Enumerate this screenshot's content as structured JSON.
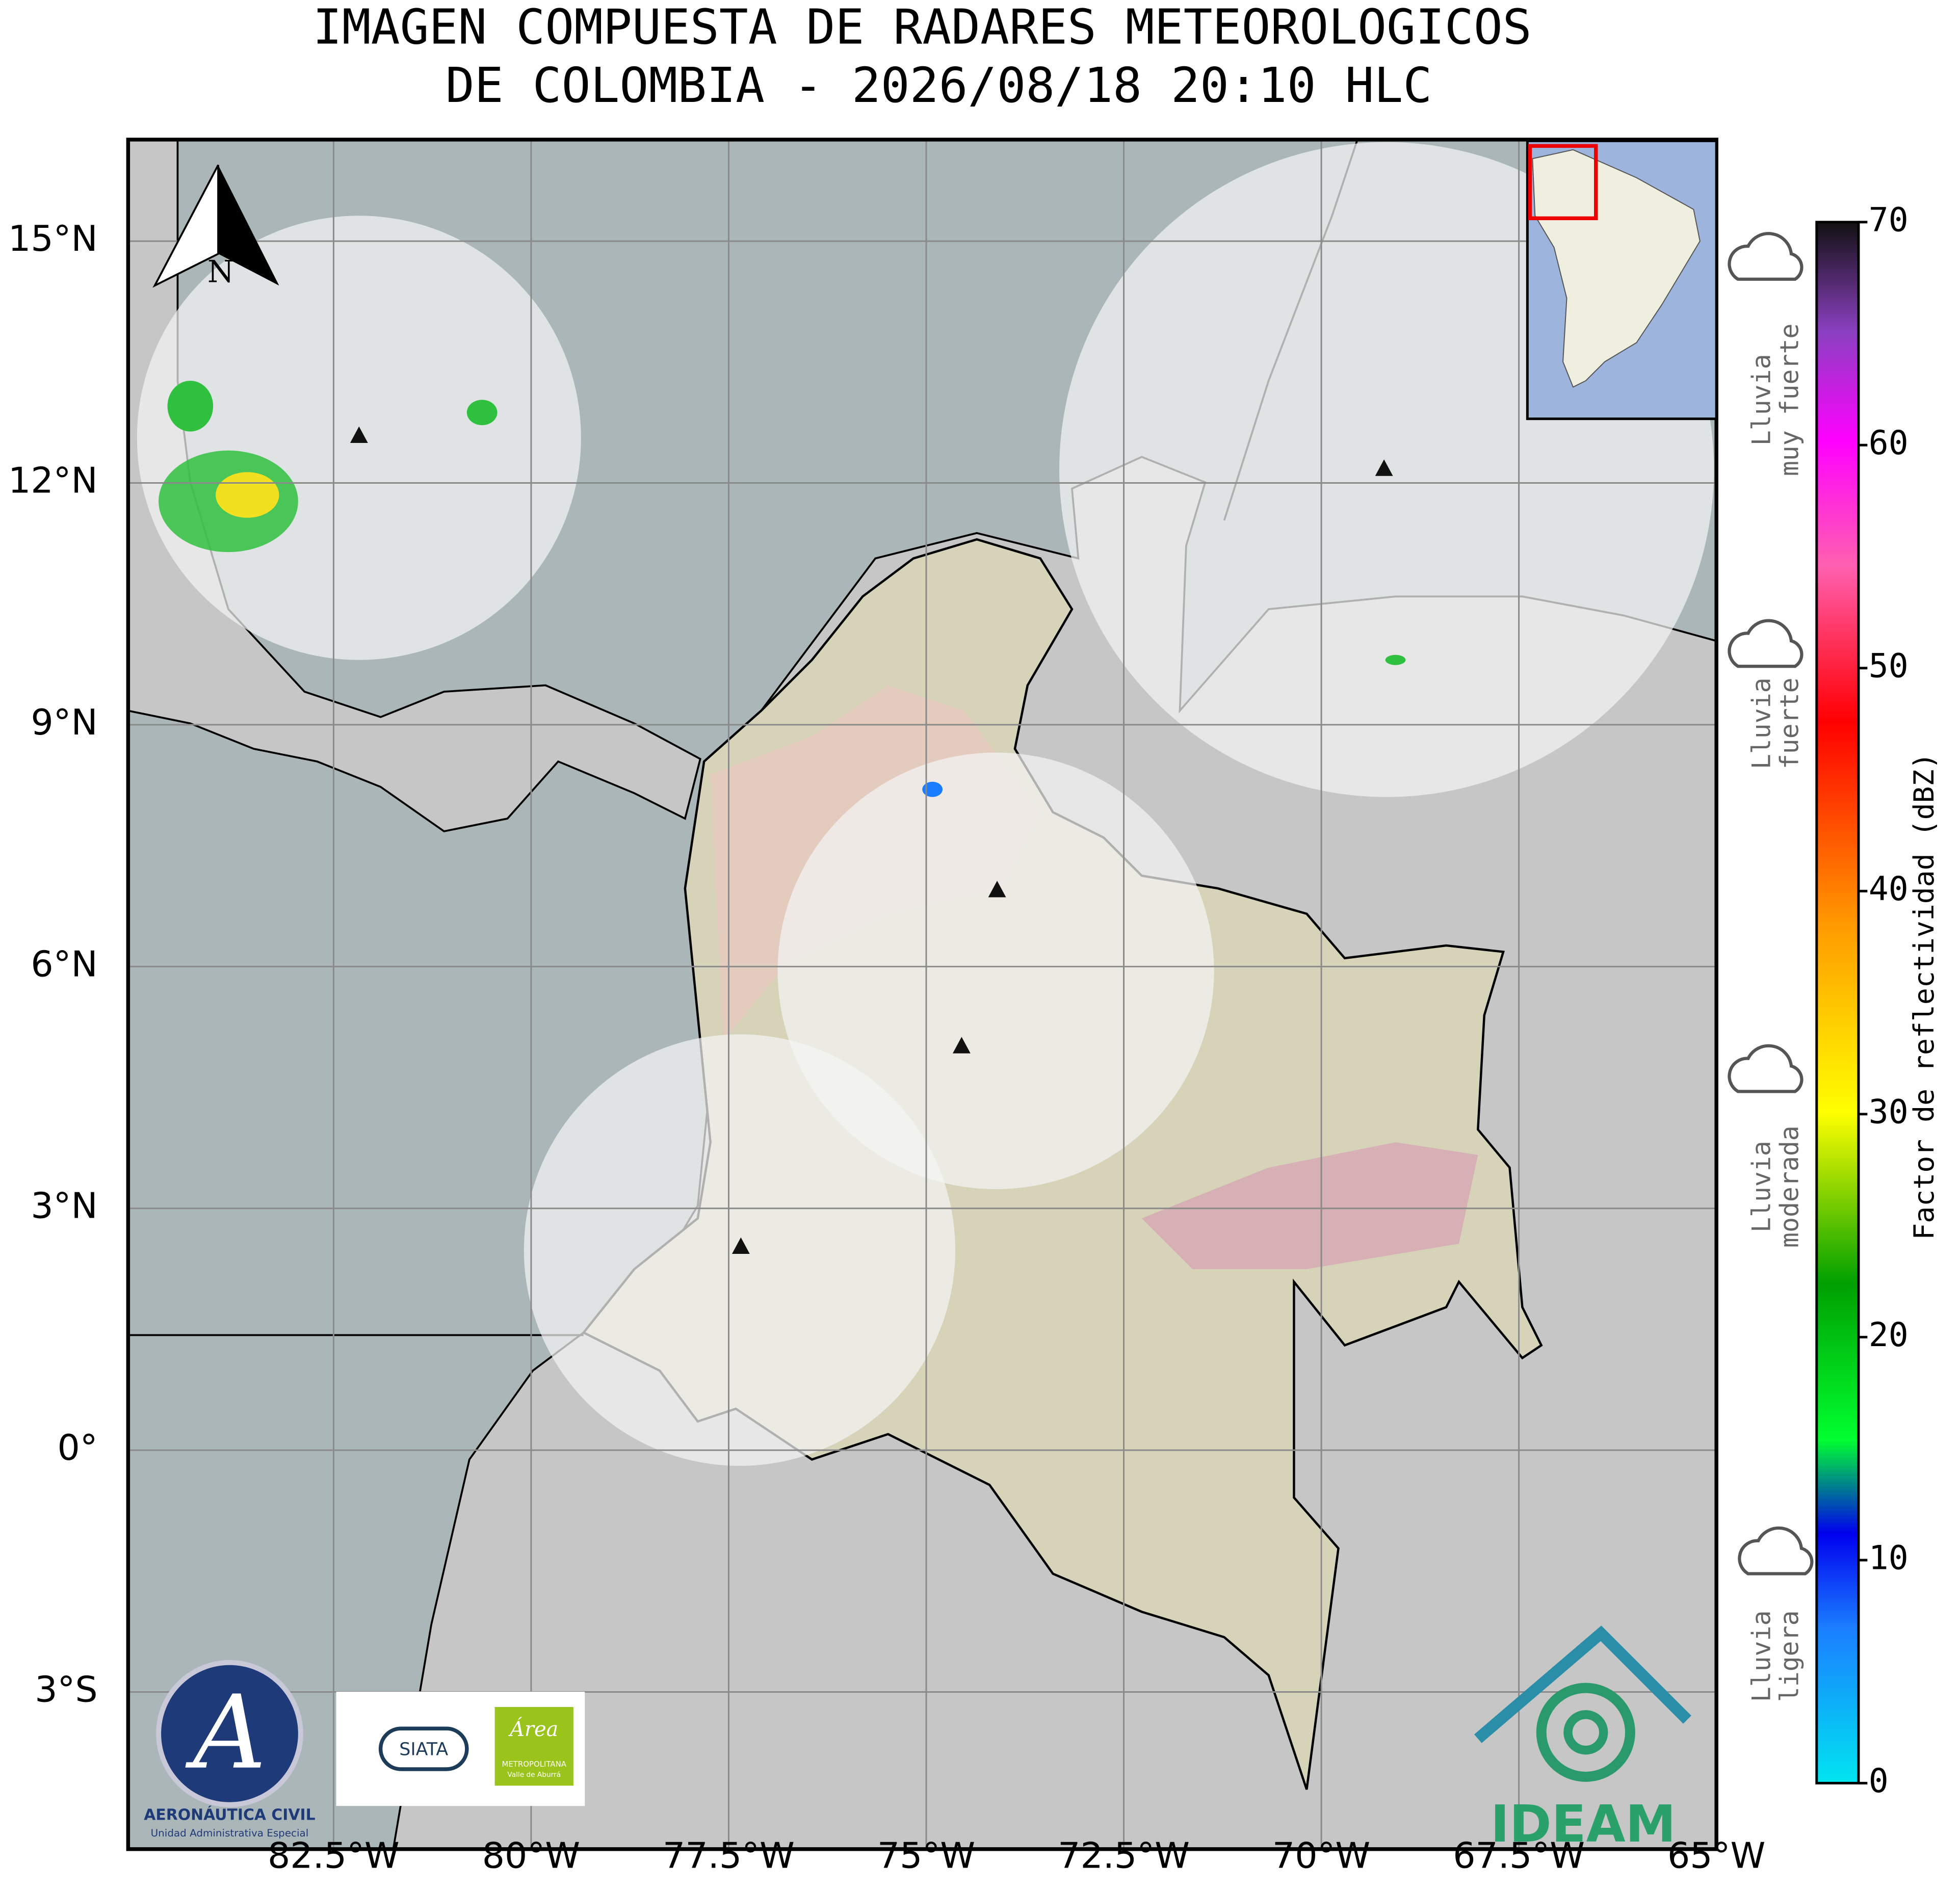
{
  "title": [
    "IMAGEN COMPUESTA DE RADARES METEOROLOGICOS",
    "DE COLOMBIA - 2026/08/18 20:10 HLC"
  ],
  "map": {
    "lon_lim": [
      -85.1,
      -65
    ],
    "lat_lim": [
      -4.95,
      16.26
    ],
    "lon_ticks": [
      {
        "value": -82.5,
        "label": "82.5°W"
      },
      {
        "value": -80,
        "label": "80°W"
      },
      {
        "value": -77.5,
        "label": "77.5°W"
      },
      {
        "value": -75,
        "label": "75°W"
      },
      {
        "value": -72.5,
        "label": "72.5°W"
      },
      {
        "value": -70,
        "label": "70°W"
      },
      {
        "value": -67.5,
        "label": "67.5°W"
      },
      {
        "value": -65,
        "label": "65°W"
      }
    ],
    "lat_ticks": [
      {
        "value": 15,
        "label": "15°N"
      },
      {
        "value": 12,
        "label": "12°N"
      },
      {
        "value": 9,
        "label": "9°N"
      },
      {
        "value": 6,
        "label": "6°N"
      },
      {
        "value": 3,
        "label": "3°N"
      },
      {
        "value": 0,
        "label": "0°"
      },
      {
        "value": -3,
        "label": "3°S"
      }
    ],
    "north_label": "N"
  },
  "colorbar": {
    "label": "Factor de reflectividad (dBZ)",
    "lim": [
      0,
      70
    ],
    "ticks": [
      0,
      10,
      20,
      30,
      40,
      50,
      60,
      70
    ]
  },
  "rain_legend": [
    [
      "Lluvia",
      "muy fuerte"
    ],
    [
      "Lluvia",
      "fuerte"
    ],
    [
      "Lluvia",
      "moderada"
    ],
    [
      "Lluvia",
      "ligera"
    ]
  ],
  "logos": {
    "aeronautica": [
      "AERONÁUTICA CIVIL",
      "Unidad Administrativa Especial"
    ],
    "siata": "SIATA",
    "area": [
      "Área",
      "METROPOLITANA",
      "Valle de Aburrá"
    ],
    "ideam": "IDEAM"
  }
}
